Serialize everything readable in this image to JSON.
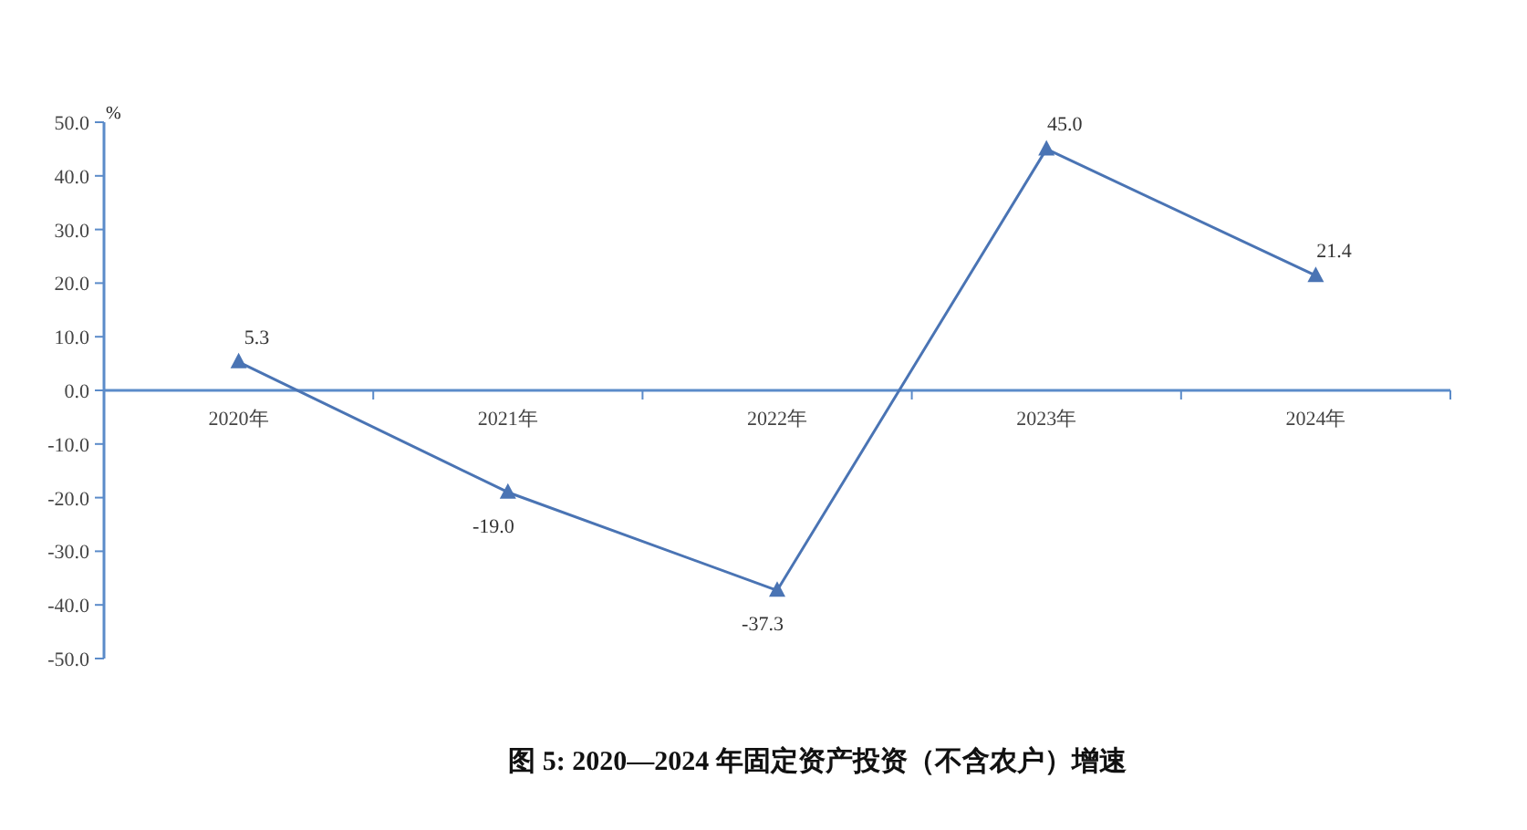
{
  "chart_data": {
    "type": "line",
    "title": "图 5:   2020—2024 年固定资产投资（不含农户）增速",
    "ylabel": "%",
    "categories": [
      "2020年",
      "2021年",
      "2022年",
      "2023年",
      "2024年"
    ],
    "series": [
      {
        "color": "#4a74b4",
        "values": [
          5.3,
          -19.0,
          -37.3,
          45.0,
          21.4
        ],
        "value_labels": [
          "5.3",
          "-19.0",
          "-37.3",
          "45.0",
          "21.4"
        ]
      }
    ],
    "ylim": [
      -50,
      50
    ],
    "yticks": [
      {
        "value": -50,
        "label": "-50.0"
      },
      {
        "value": -40,
        "label": "-40.0"
      },
      {
        "value": -30,
        "label": "-30.0"
      },
      {
        "value": -20,
        "label": "-20.0"
      },
      {
        "value": -10,
        "label": "-10.0"
      },
      {
        "value": 0,
        "label": "0.0"
      },
      {
        "value": 10,
        "label": "10.0"
      },
      {
        "value": 20,
        "label": "20.0"
      },
      {
        "value": 30,
        "label": "30.0"
      },
      {
        "value": 40,
        "label": "40.0"
      },
      {
        "value": 50,
        "label": "50.0"
      }
    ],
    "marker": "triangle",
    "grid": false
  }
}
